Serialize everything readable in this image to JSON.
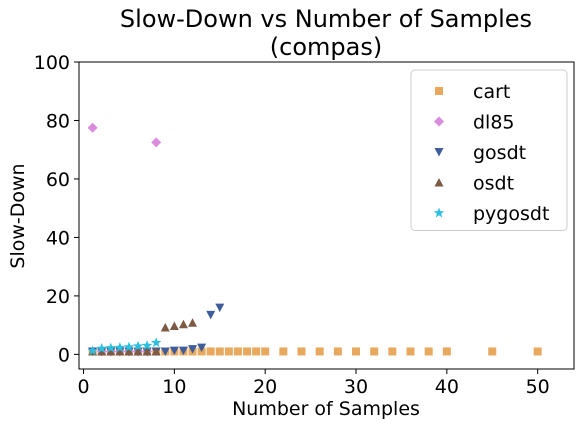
{
  "chart_data": {
    "type": "scatter",
    "title_line1": "Slow-Down vs Number of Samples",
    "title_line2": "(compas)",
    "xlabel": "Number of Samples",
    "ylabel": "Slow-Down",
    "xlim": [
      -0.5,
      54
    ],
    "ylim": [
      -5,
      100
    ],
    "xticks": [
      0,
      10,
      20,
      30,
      40,
      50
    ],
    "yticks": [
      0,
      20,
      40,
      60,
      80,
      100
    ],
    "grid": false,
    "legend_position": "top-right",
    "series": [
      {
        "name": "cart",
        "color": "#E8A95F",
        "marker": "square",
        "points": [
          [
            1,
            1
          ],
          [
            2,
            1
          ],
          [
            3,
            1
          ],
          [
            4,
            1
          ],
          [
            5,
            1
          ],
          [
            6,
            1
          ],
          [
            7,
            1
          ],
          [
            8,
            1
          ],
          [
            9,
            1
          ],
          [
            10,
            1
          ],
          [
            11,
            1
          ],
          [
            12,
            1
          ],
          [
            13,
            1
          ],
          [
            14,
            1
          ],
          [
            15,
            1
          ],
          [
            16,
            1
          ],
          [
            17,
            1
          ],
          [
            18,
            1
          ],
          [
            19,
            1
          ],
          [
            20,
            1
          ],
          [
            22,
            1
          ],
          [
            24,
            1
          ],
          [
            26,
            1
          ],
          [
            28,
            1
          ],
          [
            30,
            1
          ],
          [
            32,
            1
          ],
          [
            34,
            1
          ],
          [
            36,
            1
          ],
          [
            38,
            1
          ],
          [
            40,
            1
          ],
          [
            45,
            1
          ],
          [
            50,
            1
          ]
        ]
      },
      {
        "name": "dl85",
        "color": "#DA8BDD",
        "marker": "diamond",
        "points": [
          [
            1,
            77.5
          ],
          [
            8,
            72.5
          ],
          [
            2,
            1
          ],
          [
            3,
            1
          ],
          [
            4,
            1
          ],
          [
            5,
            1
          ],
          [
            6,
            1
          ],
          [
            7,
            1
          ]
        ]
      },
      {
        "name": "gosdt",
        "color": "#3F5D9A",
        "marker": "triangle-down",
        "points": [
          [
            1,
            1
          ],
          [
            2,
            1
          ],
          [
            3,
            1
          ],
          [
            4,
            1
          ],
          [
            5,
            1
          ],
          [
            6,
            1
          ],
          [
            7,
            1
          ],
          [
            8,
            1
          ],
          [
            9,
            1
          ],
          [
            10,
            1.3
          ],
          [
            11,
            1.3
          ],
          [
            12,
            1.8
          ],
          [
            13,
            2.3
          ],
          [
            14,
            13.5
          ],
          [
            15,
            16
          ]
        ]
      },
      {
        "name": "osdt",
        "color": "#7D5A42",
        "marker": "triangle-up",
        "points": [
          [
            1,
            1
          ],
          [
            2,
            1
          ],
          [
            3,
            1
          ],
          [
            4,
            1
          ],
          [
            5,
            1
          ],
          [
            6,
            1
          ],
          [
            7,
            1
          ],
          [
            8,
            1
          ],
          [
            9,
            9.2
          ],
          [
            10,
            9.7
          ],
          [
            11,
            10.3
          ],
          [
            12,
            10.8
          ]
        ]
      },
      {
        "name": "pygosdt",
        "color": "#2EBFE0",
        "marker": "star",
        "points": [
          [
            1,
            1.2
          ],
          [
            2,
            2
          ],
          [
            3,
            2.2
          ],
          [
            4,
            2.3
          ],
          [
            5,
            2.5
          ],
          [
            6,
            2.8
          ],
          [
            7,
            3
          ],
          [
            8,
            4
          ]
        ]
      }
    ]
  }
}
